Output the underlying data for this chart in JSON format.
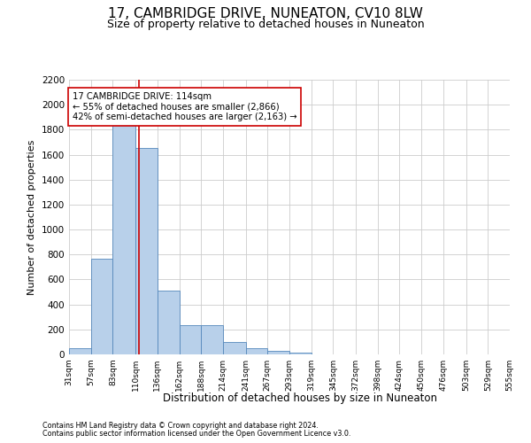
{
  "title": "17, CAMBRIDGE DRIVE, NUNEATON, CV10 8LW",
  "subtitle": "Size of property relative to detached houses in Nuneaton",
  "xlabel": "Distribution of detached houses by size in Nuneaton",
  "ylabel": "Number of detached properties",
  "footnote1": "Contains HM Land Registry data © Crown copyright and database right 2024.",
  "footnote2": "Contains public sector information licensed under the Open Government Licence v3.0.",
  "bar_edges": [
    31,
    57,
    83,
    110,
    136,
    162,
    188,
    214,
    241,
    267,
    293,
    319,
    345,
    372,
    398,
    424,
    450,
    476,
    503,
    529,
    555
  ],
  "bar_heights": [
    50,
    770,
    1840,
    1650,
    510,
    235,
    235,
    100,
    48,
    30,
    15,
    0,
    0,
    0,
    0,
    0,
    0,
    0,
    0,
    0
  ],
  "bar_color": "#b8d0ea",
  "bar_edge_color": "#5588bb",
  "bar_linewidth": 0.6,
  "vline_x": 114,
  "vline_color": "#cc0000",
  "ylim": [
    0,
    2200
  ],
  "yticks": [
    0,
    200,
    400,
    600,
    800,
    1000,
    1200,
    1400,
    1600,
    1800,
    2000,
    2200
  ],
  "annotation_line1": "17 CAMBRIDGE DRIVE: 114sqm",
  "annotation_line2": "← 55% of detached houses are smaller (2,866)",
  "annotation_line3": "42% of semi-detached houses are larger (2,163) →",
  "annotation_box_color": "#ffffff",
  "annotation_box_edgecolor": "#cc0000",
  "grid_color": "#cccccc",
  "background_color": "#ffffff",
  "tick_labels": [
    "31sqm",
    "57sqm",
    "83sqm",
    "110sqm",
    "136sqm",
    "162sqm",
    "188sqm",
    "214sqm",
    "241sqm",
    "267sqm",
    "293sqm",
    "319sqm",
    "345sqm",
    "372sqm",
    "398sqm",
    "424sqm",
    "450sqm",
    "476sqm",
    "503sqm",
    "529sqm",
    "555sqm"
  ]
}
